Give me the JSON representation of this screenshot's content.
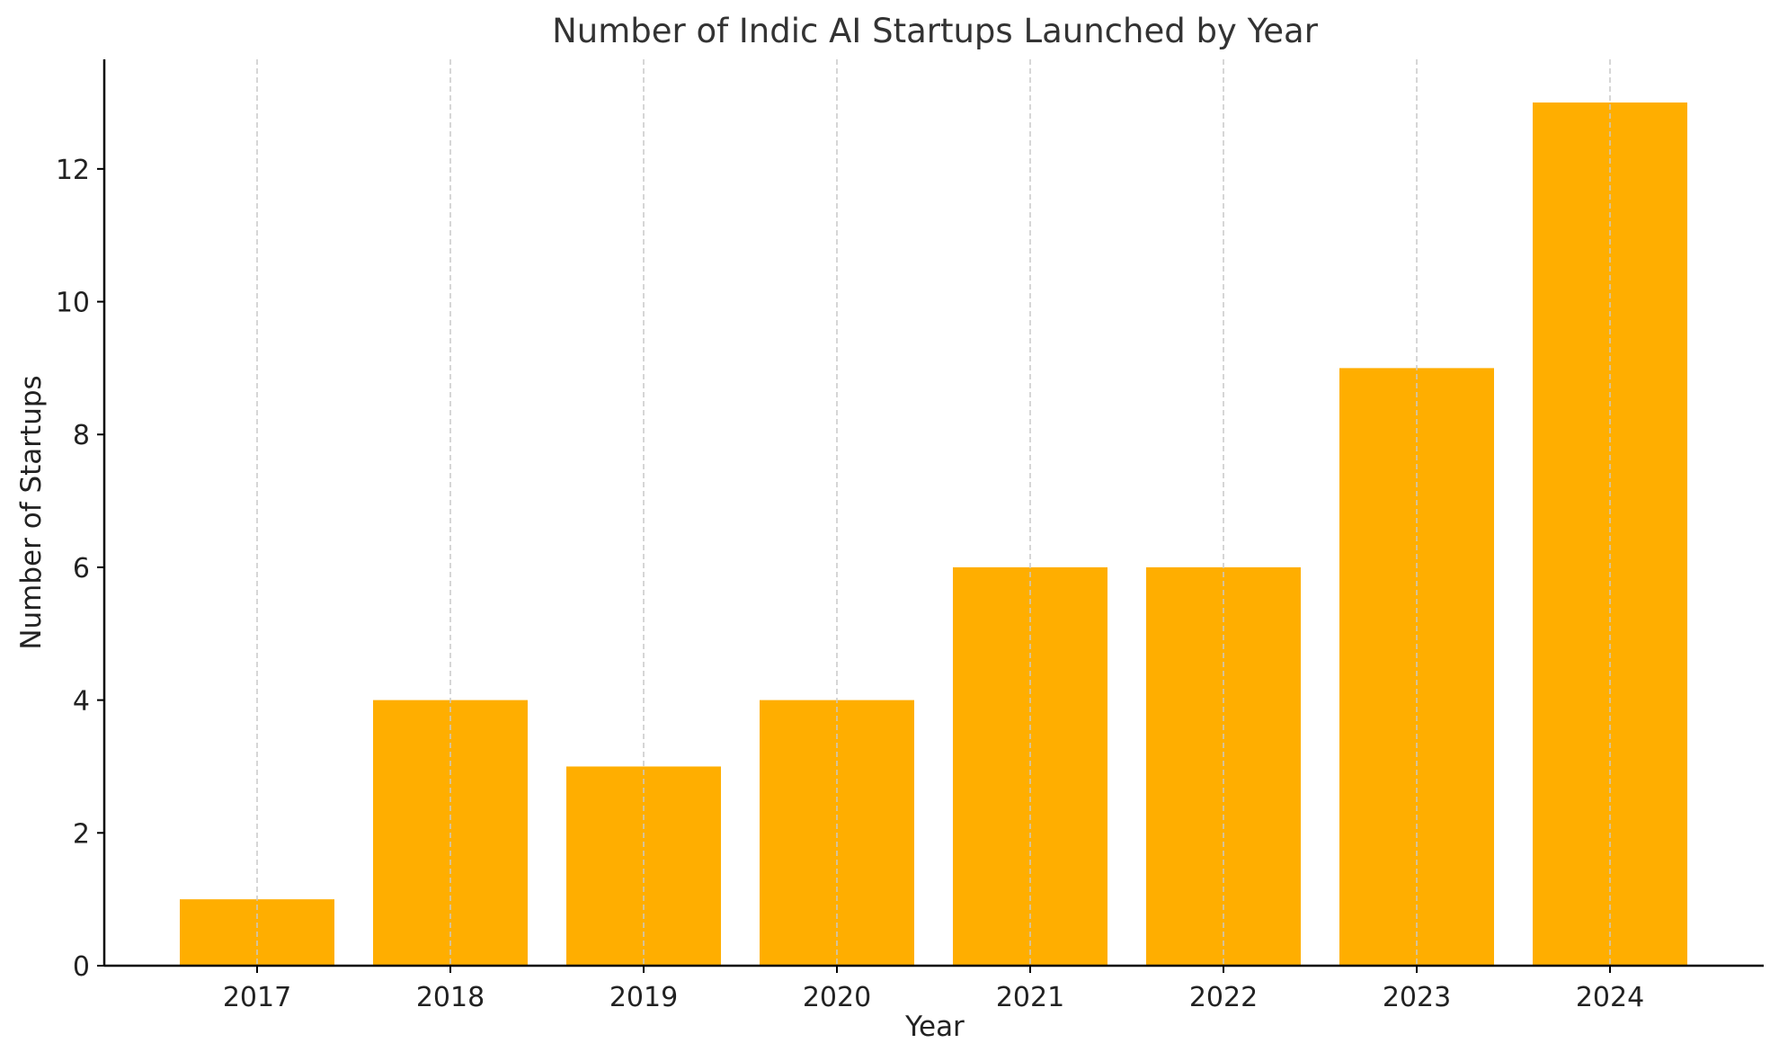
{
  "chart_data": {
    "type": "bar",
    "title": "Number of Indic AI Startups Launched by Year",
    "xlabel": "Year",
    "ylabel": "Number of Startups",
    "categories": [
      "2017",
      "2018",
      "2019",
      "2020",
      "2021",
      "2022",
      "2023",
      "2024"
    ],
    "values": [
      1,
      4,
      3,
      4,
      6,
      6,
      9,
      13
    ],
    "ylim": [
      0,
      13.65
    ],
    "yticks": [
      0,
      2,
      4,
      6,
      8,
      10,
      12
    ],
    "grid": "vertical dashed lines at each category",
    "bar_color": "#FFAE00",
    "grid_color": "#c8c8c8",
    "legend": "none"
  }
}
